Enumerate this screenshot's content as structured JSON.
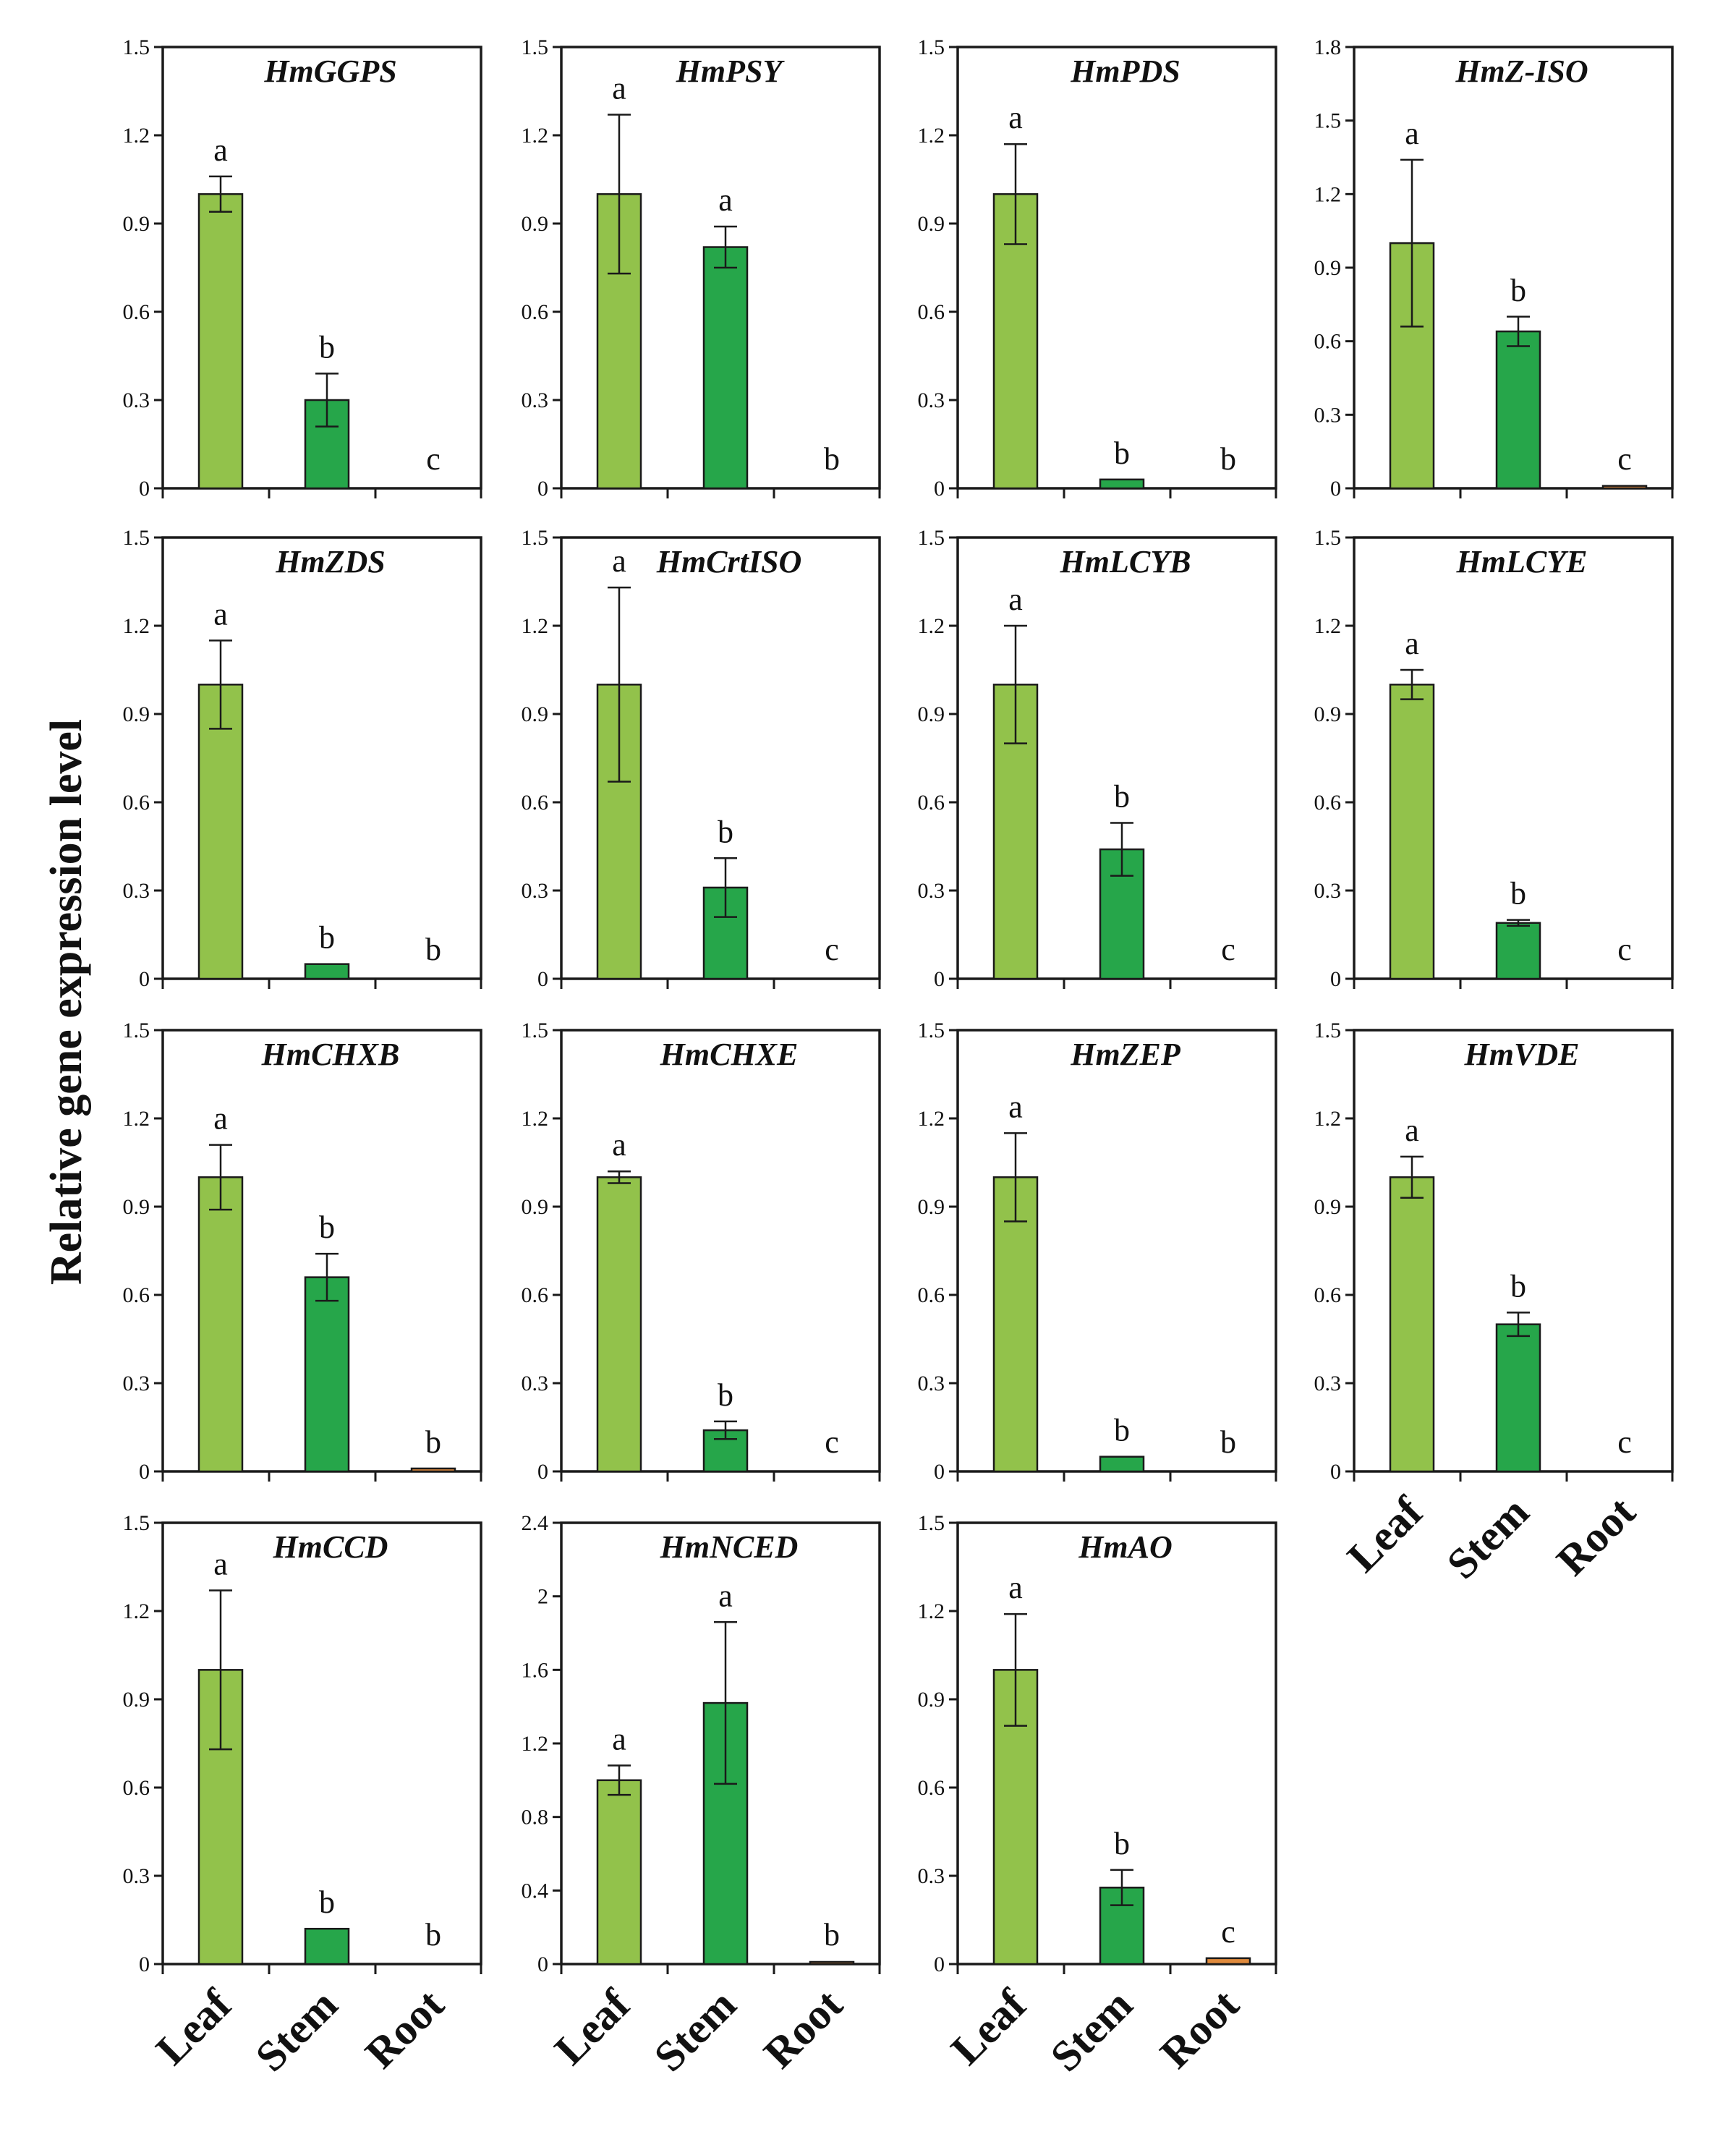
{
  "figure": {
    "ylabel": "Relative gene expression level",
    "categories": [
      "Leaf",
      "Stem",
      "Root"
    ]
  },
  "colors": {
    "leaf": "#92c24b",
    "stem": "#26a64a",
    "root": "#e08a3c",
    "border": "#1a1a1a"
  },
  "chart_data": [
    {
      "type": "bar",
      "title": "HmGGPS",
      "categories": [
        "Leaf",
        "Stem",
        "Root"
      ],
      "values": [
        1.0,
        0.3,
        0.0
      ],
      "errors": [
        0.06,
        0.09,
        0.0
      ],
      "significance": [
        "a",
        "b",
        "c"
      ],
      "ylim": [
        0,
        1.5
      ],
      "yticks": [
        "0",
        "0.3",
        "0.6",
        "0.9",
        "1.2",
        "1.5"
      ]
    },
    {
      "type": "bar",
      "title": "HmPSY",
      "categories": [
        "Leaf",
        "Stem",
        "Root"
      ],
      "values": [
        1.0,
        0.82,
        0.0
      ],
      "errors": [
        0.27,
        0.07,
        0.0
      ],
      "significance": [
        "a",
        "a",
        "b"
      ],
      "ylim": [
        0,
        1.5
      ],
      "yticks": [
        "0",
        "0.3",
        "0.6",
        "0.9",
        "1.2",
        "1.5"
      ]
    },
    {
      "type": "bar",
      "title": "HmPDS",
      "categories": [
        "Leaf",
        "Stem",
        "Root"
      ],
      "values": [
        1.0,
        0.03,
        0.0
      ],
      "errors": [
        0.17,
        0.0,
        0.0
      ],
      "significance": [
        "a",
        "b",
        "b"
      ],
      "ylim": [
        0,
        1.5
      ],
      "yticks": [
        "0",
        "0.3",
        "0.6",
        "0.9",
        "1.2",
        "1.5"
      ]
    },
    {
      "type": "bar",
      "title": "HmZ-ISO",
      "categories": [
        "Leaf",
        "Stem",
        "Root"
      ],
      "values": [
        1.0,
        0.64,
        0.01
      ],
      "errors": [
        0.34,
        0.06,
        0.0
      ],
      "significance": [
        "a",
        "b",
        "c"
      ],
      "ylim": [
        0,
        1.8
      ],
      "yticks": [
        "0",
        "0.3",
        "0.6",
        "0.9",
        "1.2",
        "1.5",
        "1.8"
      ]
    },
    {
      "type": "bar",
      "title": "HmZDS",
      "categories": [
        "Leaf",
        "Stem",
        "Root"
      ],
      "values": [
        1.0,
        0.05,
        0.0
      ],
      "errors": [
        0.15,
        0.0,
        0.0
      ],
      "significance": [
        "a",
        "b",
        "b"
      ],
      "ylim": [
        0,
        1.5
      ],
      "yticks": [
        "0",
        "0.3",
        "0.6",
        "0.9",
        "1.2",
        "1.5"
      ]
    },
    {
      "type": "bar",
      "title": "HmCrtISO",
      "categories": [
        "Leaf",
        "Stem",
        "Root"
      ],
      "values": [
        1.0,
        0.31,
        0.0
      ],
      "errors": [
        0.33,
        0.1,
        0.0
      ],
      "significance": [
        "a",
        "b",
        "c"
      ],
      "ylim": [
        0,
        1.5
      ],
      "yticks": [
        "0",
        "0.3",
        "0.6",
        "0.9",
        "1.2",
        "1.5"
      ]
    },
    {
      "type": "bar",
      "title": "HmLCYB",
      "categories": [
        "Leaf",
        "Stem",
        "Root"
      ],
      "values": [
        1.0,
        0.44,
        0.0
      ],
      "errors": [
        0.2,
        0.09,
        0.0
      ],
      "significance": [
        "a",
        "b",
        "c"
      ],
      "ylim": [
        0,
        1.5
      ],
      "yticks": [
        "0",
        "0.3",
        "0.6",
        "0.9",
        "1.2",
        "1.5"
      ]
    },
    {
      "type": "bar",
      "title": "HmLCYE",
      "categories": [
        "Leaf",
        "Stem",
        "Root"
      ],
      "values": [
        1.0,
        0.19,
        0.0
      ],
      "errors": [
        0.05,
        0.01,
        0.0
      ],
      "significance": [
        "a",
        "b",
        "c"
      ],
      "ylim": [
        0,
        1.5
      ],
      "yticks": [
        "0",
        "0.3",
        "0.6",
        "0.9",
        "1.2",
        "1.5"
      ]
    },
    {
      "type": "bar",
      "title": "HmCHXB",
      "categories": [
        "Leaf",
        "Stem",
        "Root"
      ],
      "values": [
        1.0,
        0.66,
        0.01
      ],
      "errors": [
        0.11,
        0.08,
        0.0
      ],
      "significance": [
        "a",
        "b",
        "b"
      ],
      "ylim": [
        0,
        1.5
      ],
      "yticks": [
        "0",
        "0.3",
        "0.6",
        "0.9",
        "1.2",
        "1.5"
      ]
    },
    {
      "type": "bar",
      "title": "HmCHXE",
      "categories": [
        "Leaf",
        "Stem",
        "Root"
      ],
      "values": [
        1.0,
        0.14,
        0.0
      ],
      "errors": [
        0.02,
        0.03,
        0.0
      ],
      "significance": [
        "a",
        "b",
        "c"
      ],
      "ylim": [
        0,
        1.5
      ],
      "yticks": [
        "0",
        "0.3",
        "0.6",
        "0.9",
        "1.2",
        "1.5"
      ]
    },
    {
      "type": "bar",
      "title": "HmZEP",
      "categories": [
        "Leaf",
        "Stem",
        "Root"
      ],
      "values": [
        1.0,
        0.05,
        0.0
      ],
      "errors": [
        0.15,
        0.0,
        0.0
      ],
      "significance": [
        "a",
        "b",
        "b"
      ],
      "ylim": [
        0,
        1.5
      ],
      "yticks": [
        "0",
        "0.3",
        "0.6",
        "0.9",
        "1.2",
        "1.5"
      ]
    },
    {
      "type": "bar",
      "title": "HmVDE",
      "categories": [
        "Leaf",
        "Stem",
        "Root"
      ],
      "values": [
        1.0,
        0.5,
        0.0
      ],
      "errors": [
        0.07,
        0.04,
        0.0
      ],
      "significance": [
        "a",
        "b",
        "c"
      ],
      "ylim": [
        0,
        1.5
      ],
      "yticks": [
        "0",
        "0.3",
        "0.6",
        "0.9",
        "1.2",
        "1.5"
      ]
    },
    {
      "type": "bar",
      "title": "HmCCD",
      "categories": [
        "Leaf",
        "Stem",
        "Root"
      ],
      "values": [
        1.0,
        0.12,
        0.0
      ],
      "errors": [
        0.27,
        0.0,
        0.0
      ],
      "significance": [
        "a",
        "b",
        "b"
      ],
      "ylim": [
        0,
        1.5
      ],
      "yticks": [
        "0",
        "0.3",
        "0.6",
        "0.9",
        "1.2",
        "1.5"
      ]
    },
    {
      "type": "bar",
      "title": "HmNCED",
      "categories": [
        "Leaf",
        "Stem",
        "Root"
      ],
      "values": [
        1.0,
        1.42,
        0.01
      ],
      "errors": [
        0.08,
        0.44,
        0.0
      ],
      "significance": [
        "a",
        "a",
        "b"
      ],
      "ylim": [
        0,
        2.4
      ],
      "yticks": [
        "0",
        "0.4",
        "0.8",
        "1.2",
        "1.6",
        "2",
        "2.4"
      ]
    },
    {
      "type": "bar",
      "title": "HmAO",
      "categories": [
        "Leaf",
        "Stem",
        "Root"
      ],
      "values": [
        1.0,
        0.26,
        0.02
      ],
      "errors": [
        0.19,
        0.06,
        0.0
      ],
      "significance": [
        "a",
        "b",
        "c"
      ],
      "ylim": [
        0,
        1.5
      ],
      "yticks": [
        "0",
        "0.3",
        "0.6",
        "0.9",
        "1.2",
        "1.5"
      ]
    }
  ]
}
